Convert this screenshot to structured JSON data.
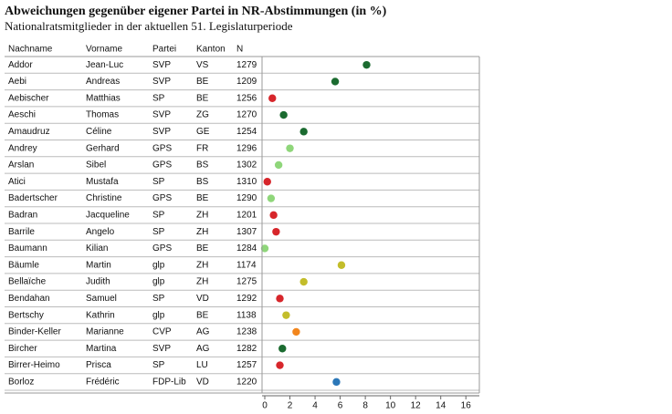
{
  "chart_data": {
    "type": "dot",
    "title": "Abweichungen gegenüber eigener Partei in NR-Abstimmungen (in %)",
    "subtitle": "Nationalratsmitglieder in der aktuellen 51. Legislaturperiode",
    "columns": [
      "Nachname",
      "Vorname",
      "Partei",
      "Kanton",
      "N"
    ],
    "rows": [
      [
        "Addor",
        "Jean-Luc",
        "SVP",
        "VS",
        1279
      ],
      [
        "Aebi",
        "Andreas",
        "SVP",
        "BE",
        1209
      ],
      [
        "Aebischer",
        "Matthias",
        "SP",
        "BE",
        1256
      ],
      [
        "Aeschi",
        "Thomas",
        "SVP",
        "ZG",
        1270
      ],
      [
        "Amaudruz",
        "Céline",
        "SVP",
        "GE",
        1254
      ],
      [
        "Andrey",
        "Gerhard",
        "GPS",
        "FR",
        1296
      ],
      [
        "Arslan",
        "Sibel",
        "GPS",
        "BS",
        1302
      ],
      [
        "Atici",
        "Mustafa",
        "SP",
        "BS",
        1310
      ],
      [
        "Badertscher",
        "Christine",
        "GPS",
        "BE",
        1290
      ],
      [
        "Badran",
        "Jacqueline",
        "SP",
        "ZH",
        1201
      ],
      [
        "Barrile",
        "Angelo",
        "SP",
        "ZH",
        1307
      ],
      [
        "Baumann",
        "Kilian",
        "GPS",
        "BE",
        1284
      ],
      [
        "Bäumle",
        "Martin",
        "glp",
        "ZH",
        1174
      ],
      [
        "Bellaïche",
        "Judith",
        "glp",
        "ZH",
        1275
      ],
      [
        "Bendahan",
        "Samuel",
        "SP",
        "VD",
        1292
      ],
      [
        "Bertschy",
        "Kathrin",
        "glp",
        "BE",
        1138
      ],
      [
        "Binder-Keller",
        "Marianne",
        "CVP",
        "AG",
        1238
      ],
      [
        "Bircher",
        "Martina",
        "SVP",
        "AG",
        1282
      ],
      [
        "Birrer-Heimo",
        "Prisca",
        "SP",
        "LU",
        1257
      ],
      [
        "Borloz",
        "Frédéric",
        "FDP-Lib",
        "VD",
        1220
      ]
    ],
    "values": [
      8.1,
      5.6,
      0.6,
      1.5,
      3.1,
      2.0,
      1.1,
      0.2,
      0.5,
      0.7,
      0.9,
      0.0,
      6.1,
      3.1,
      1.2,
      1.7,
      2.5,
      1.4,
      1.2,
      5.7
    ],
    "party_colors": {
      "SVP": "#1b6b30",
      "SP": "#d7262b",
      "GPS": "#8fd67a",
      "glp": "#c3bd2b",
      "CVP": "#f2861d",
      "FDP-Lib": "#2b77b8"
    },
    "xlim": [
      0,
      17
    ],
    "xticks": [
      0,
      2,
      4,
      6,
      8,
      10,
      12,
      14,
      16
    ]
  }
}
